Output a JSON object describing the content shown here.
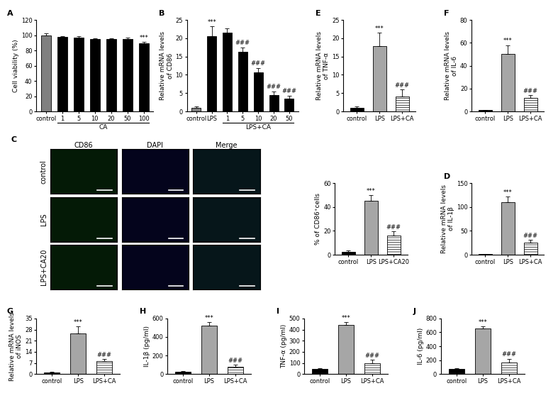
{
  "chart_data": [
    {
      "panel": "A",
      "type": "bar",
      "y_label": "Cell viability (%)",
      "categories": [
        "control",
        "1",
        "5",
        "10",
        "20",
        "50",
        "100"
      ],
      "values": [
        100,
        98,
        97,
        95,
        95,
        95,
        89
      ],
      "errors": [
        2,
        1,
        2,
        1,
        1,
        2,
        2
      ],
      "colors": [
        "#808080",
        "#000000",
        "#000000",
        "#000000",
        "#000000",
        "#000000",
        "#000000"
      ],
      "significance": [
        null,
        null,
        null,
        null,
        null,
        null,
        "***"
      ],
      "group": {
        "label": "CA",
        "categories": [
          "1",
          "5",
          "10",
          "20",
          "50",
          "100"
        ]
      },
      "ylim": [
        0,
        120
      ],
      "yticks": [
        0,
        20,
        40,
        60,
        80,
        100,
        120
      ]
    },
    {
      "panel": "B",
      "type": "bar",
      "y_label": "Relative mRNA levels\nof CD86",
      "categories": [
        "control",
        "LPS",
        "1",
        "5",
        "10",
        "20",
        "50"
      ],
      "values": [
        1,
        20.5,
        21.5,
        16.2,
        10.7,
        4.5,
        3.5
      ],
      "errors": [
        0.3,
        2.7,
        1.2,
        1.3,
        1.2,
        1.0,
        0.8
      ],
      "colors": [
        "#808080",
        "#000000",
        "#000000",
        "#000000",
        "#000000",
        "#000000",
        "#000000"
      ],
      "significance": [
        null,
        "***",
        null,
        "###",
        "###",
        "###",
        "###"
      ],
      "group": {
        "label": "LPS+CA",
        "categories": [
          "1",
          "5",
          "10",
          "20",
          "50"
        ]
      },
      "ylim": [
        0,
        25
      ],
      "yticks": [
        0,
        5,
        10,
        15,
        20,
        25
      ]
    },
    {
      "panel": "C",
      "type": "bar",
      "y_label": "% of CD86⁺cells",
      "categories": [
        "control",
        "LPS",
        "LPS+CA20"
      ],
      "values": [
        2.5,
        45,
        16
      ],
      "errors": [
        1,
        5,
        3.5
      ],
      "colors": [
        "#000000",
        "#a6a6a6",
        "#ffffff"
      ],
      "significance": [
        null,
        "***",
        "###"
      ],
      "ylim": [
        0,
        60
      ],
      "yticks": [
        0,
        20,
        40,
        60
      ]
    },
    {
      "panel": "D",
      "type": "bar",
      "y_label": "Relative mRNA levels\nof IL-1β",
      "categories": [
        "control",
        "LPS",
        "LPS+CA"
      ],
      "values": [
        1,
        110,
        25
      ],
      "errors": [
        0.5,
        12,
        6
      ],
      "colors": [
        "#000000",
        "#a6a6a6",
        "#ffffff"
      ],
      "significance": [
        null,
        "***",
        "###"
      ],
      "ylim": [
        0,
        150
      ],
      "yticks": [
        0,
        50,
        100,
        150
      ]
    },
    {
      "panel": "E",
      "type": "bar",
      "y_label": "Relative mRNA levels\nof TNF-α",
      "categories": [
        "control",
        "LPS",
        "LPS+CA"
      ],
      "values": [
        1,
        17.8,
        4
      ],
      "errors": [
        0.3,
        3.7,
        2
      ],
      "colors": [
        "#000000",
        "#a6a6a6",
        "#ffffff"
      ],
      "significance": [
        null,
        "***",
        "###"
      ],
      "ylim": [
        0,
        25
      ],
      "yticks": [
        0,
        5,
        10,
        15,
        20,
        25
      ]
    },
    {
      "panel": "F",
      "type": "bar",
      "y_label": "Relative mRNA levels\nof IL-6",
      "categories": [
        "control",
        "LPS",
        "LPS+CA"
      ],
      "values": [
        1,
        50,
        12
      ],
      "errors": [
        0.3,
        8,
        2
      ],
      "colors": [
        "#000000",
        "#a6a6a6",
        "#ffffff"
      ],
      "significance": [
        null,
        "***",
        "###"
      ],
      "ylim": [
        0,
        80
      ],
      "yticks": [
        0,
        20,
        40,
        60,
        80
      ]
    },
    {
      "panel": "G",
      "type": "bar",
      "y_label": "Relative mRNA levels\nof iNOS",
      "categories": [
        "control",
        "LPS",
        "LPS+CA"
      ],
      "values": [
        1,
        25.5,
        8
      ],
      "errors": [
        0.3,
        4.5,
        1.5
      ],
      "colors": [
        "#000000",
        "#a6a6a6",
        "#ffffff"
      ],
      "significance": [
        null,
        "***",
        "###"
      ],
      "ylim": [
        0,
        35
      ],
      "yticks": [
        0,
        7,
        14,
        21,
        28,
        35
      ]
    },
    {
      "panel": "H",
      "type": "bar",
      "y_label": "IL-1β (pg/ml)",
      "categories": [
        "control",
        "LPS",
        "LPS+CA"
      ],
      "values": [
        25,
        520,
        80
      ],
      "errors": [
        8,
        40,
        20
      ],
      "colors": [
        "#000000",
        "#a6a6a6",
        "#ffffff"
      ],
      "significance": [
        null,
        "***",
        "###"
      ],
      "ylim": [
        0,
        600
      ],
      "yticks": [
        0,
        200,
        400,
        600
      ]
    },
    {
      "panel": "I",
      "type": "bar",
      "y_label": "TNF-α (pg/ml)",
      "categories": [
        "control",
        "LPS",
        "LPS+CA"
      ],
      "values": [
        45,
        440,
        100
      ],
      "errors": [
        10,
        25,
        30
      ],
      "colors": [
        "#000000",
        "#a6a6a6",
        "#ffffff"
      ],
      "significance": [
        null,
        "***",
        "###"
      ],
      "ylim": [
        0,
        500
      ],
      "yticks": [
        0,
        100,
        200,
        300,
        400,
        500
      ]
    },
    {
      "panel": "J",
      "type": "bar",
      "y_label": "IL-6 (pg/ml)",
      "categories": [
        "control",
        "LPS",
        "LPS+CA"
      ],
      "values": [
        70,
        660,
        165
      ],
      "errors": [
        10,
        25,
        55
      ],
      "colors": [
        "#000000",
        "#a6a6a6",
        "#ffffff"
      ],
      "significance": [
        null,
        "***",
        "###"
      ],
      "ylim": [
        0,
        800
      ],
      "yticks": [
        0,
        200,
        400,
        600,
        800
      ]
    }
  ],
  "image_panel": {
    "columns": [
      "CD86",
      "DAPI",
      "Merge"
    ],
    "rows": [
      "control",
      "LPS",
      "LPS+CA20"
    ]
  }
}
